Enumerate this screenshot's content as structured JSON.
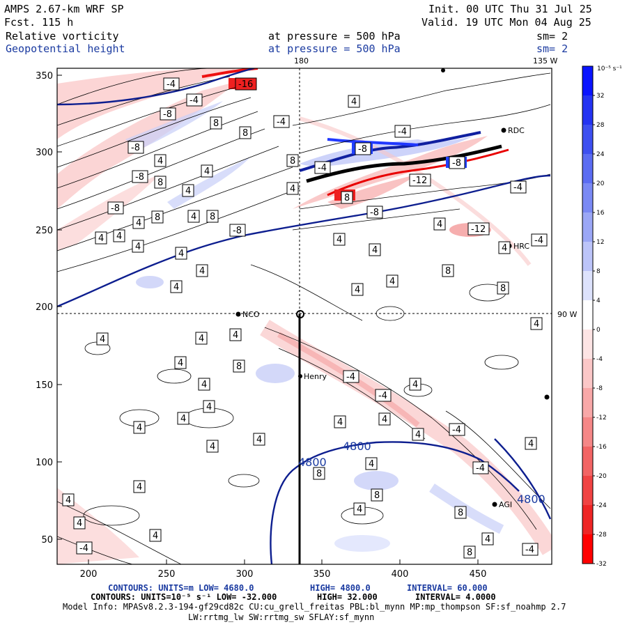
{
  "header": {
    "title_left": "AMPS 2.67-km WRF SP",
    "fcst_left": "Fcst.  115 h",
    "init": "Init. 00 UTC Thu 31 Jul 25",
    "valid": "Valid. 19 UTC Mon 04 Aug 25",
    "field1_name": "Relative vorticity",
    "field1_level": "at pressure =  500 hPa",
    "field1_sm": "sm= 2",
    "field2_name": "Geopotential height",
    "field2_level": "at pressure =  500 hPa",
    "field2_sm": "sm= 2"
  },
  "map": {
    "x_ticks": [
      "200",
      "250",
      "300",
      "350",
      "400",
      "450"
    ],
    "y_ticks": [
      "350",
      "300",
      "250",
      "200",
      "150",
      "100",
      "50"
    ],
    "top_labels": [
      "180",
      "135 W"
    ],
    "right_label": "90 W",
    "stations": [
      "NCO",
      "Henry",
      "RDC",
      "HRC",
      "AGI"
    ],
    "height_contour_labels": [
      "4800",
      "4800",
      "4800"
    ],
    "vort_labels": {
      "neg4": "-4",
      "neg8": "-8",
      "neg12": "-12",
      "neg16": "-16",
      "pos4": "4",
      "pos8": "8"
    }
  },
  "colorbar": {
    "units": "10⁻⁵ s⁻¹",
    "levels": [
      "32",
      "28",
      "24",
      "20",
      "16",
      "12",
      "8",
      "4",
      "0",
      "-4",
      "-8",
      "-12",
      "-16",
      "-20",
      "-24",
      "-28",
      "-32"
    ],
    "colors": [
      "#0a14ff",
      "#2433f2",
      "#3d4ff0",
      "#5b6cf2",
      "#7a89f4",
      "#9ba7f6",
      "#bcc4f9",
      "#dde2fc",
      "#ffffff",
      "#fde4e4",
      "#fbc7c7",
      "#f8a8a8",
      "#f58787",
      "#f26464",
      "#f04343",
      "#ee2525",
      "#ff0000"
    ]
  },
  "footer": {
    "line1_a": "CONTOURS:  UNITS=m  LOW=  4680.0",
    "line1_b": "HIGH=  4800.0",
    "line1_c": "INTERVAL=   60.000",
    "line2_a": "CONTOURS:  UNITS=10⁻⁵ s⁻¹  LOW= -32.000",
    "line2_b": "HIGH=  32.000",
    "line2_c": "INTERVAL=   4.0000",
    "model_info": "Model Info: MPASv8.2.3-194-gf29cd82c CU:cu_grell_freitas PBL:bl_mynn MP:mp_thompson SF:sf_noahmp 2.7",
    "model_info2": "LW:rrtmg_lw SW:rrtmg_sw SFLAY:sf_mynn"
  },
  "colors": {
    "height_line": "#0d1e8f",
    "accent_blue": "#1a3aa0"
  }
}
